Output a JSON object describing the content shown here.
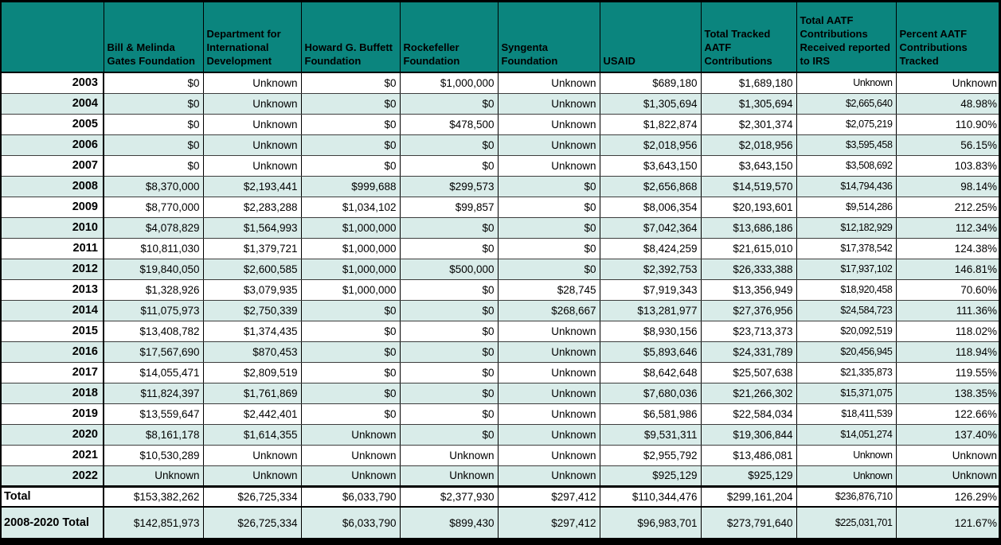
{
  "table": {
    "colors": {
      "header_bg": "#0B857E",
      "row_shaded_bg": "#D9ECE9",
      "grid_line": "#000000",
      "text": "#000000"
    },
    "columns": [
      "",
      "Bill & Melinda Gates Foundation",
      "Department for International Development",
      "Howard G. Buffett Foundation",
      "Rockefeller Foundation",
      "Syngenta Foundation",
      "USAID",
      "Total Tracked AATF Contributions",
      "Total AATF Contributions Received reported to IRS",
      "Percent AATF Contributions Tracked"
    ],
    "column_keys": [
      "year",
      "gates-foundation",
      "dfid",
      "buffett-foundation",
      "rockefeller-foundation",
      "syngenta-foundation",
      "usaid",
      "total-tracked-aatf",
      "irs-reported",
      "percent-tracked"
    ],
    "rows": [
      {
        "key": "2003",
        "label": "2003",
        "type": "year",
        "shaded": false,
        "cells": [
          "$0",
          "Unknown",
          "$0",
          "$1,000,000",
          "Unknown",
          "$689,180",
          "$1,689,180",
          "Unknown",
          "Unknown"
        ]
      },
      {
        "key": "2004",
        "label": "2004",
        "type": "year",
        "shaded": true,
        "cells": [
          "$0",
          "Unknown",
          "$0",
          "$0",
          "Unknown",
          "$1,305,694",
          "$1,305,694",
          "$2,665,640",
          "48.98%"
        ]
      },
      {
        "key": "2005",
        "label": "2005",
        "type": "year",
        "shaded": false,
        "cells": [
          "$0",
          "Unknown",
          "$0",
          "$478,500",
          "Unknown",
          "$1,822,874",
          "$2,301,374",
          "$2,075,219",
          "110.90%"
        ]
      },
      {
        "key": "2006",
        "label": "2006",
        "type": "year",
        "shaded": true,
        "cells": [
          "$0",
          "Unknown",
          "$0",
          "$0",
          "Unknown",
          "$2,018,956",
          "$2,018,956",
          "$3,595,458",
          "56.15%"
        ]
      },
      {
        "key": "2007",
        "label": "2007",
        "type": "year",
        "shaded": false,
        "cells": [
          "$0",
          "Unknown",
          "$0",
          "$0",
          "Unknown",
          "$3,643,150",
          "$3,643,150",
          "$3,508,692",
          "103.83%"
        ]
      },
      {
        "key": "2008",
        "label": "2008",
        "type": "year",
        "shaded": true,
        "cells": [
          "$8,370,000",
          "$2,193,441",
          "$999,688",
          "$299,573",
          "$0",
          "$2,656,868",
          "$14,519,570",
          "$14,794,436",
          "98.14%"
        ]
      },
      {
        "key": "2009",
        "label": "2009",
        "type": "year",
        "shaded": false,
        "cells": [
          "$8,770,000",
          "$2,283,288",
          "$1,034,102",
          "$99,857",
          "$0",
          "$8,006,354",
          "$20,193,601",
          "$9,514,286",
          "212.25%"
        ]
      },
      {
        "key": "2010",
        "label": "2010",
        "type": "year",
        "shaded": true,
        "cells": [
          "$4,078,829",
          "$1,564,993",
          "$1,000,000",
          "$0",
          "$0",
          "$7,042,364",
          "$13,686,186",
          "$12,182,929",
          "112.34%"
        ]
      },
      {
        "key": "2011",
        "label": "2011",
        "type": "year",
        "shaded": false,
        "cells": [
          "$10,811,030",
          "$1,379,721",
          "$1,000,000",
          "$0",
          "$0",
          "$8,424,259",
          "$21,615,010",
          "$17,378,542",
          "124.38%"
        ]
      },
      {
        "key": "2012",
        "label": "2012",
        "type": "year",
        "shaded": true,
        "cells": [
          "$19,840,050",
          "$2,600,585",
          "$1,000,000",
          "$500,000",
          "$0",
          "$2,392,753",
          "$26,333,388",
          "$17,937,102",
          "146.81%"
        ]
      },
      {
        "key": "2013",
        "label": "2013",
        "type": "year",
        "shaded": false,
        "cells": [
          "$1,328,926",
          "$3,079,935",
          "$1,000,000",
          "$0",
          "$28,745",
          "$7,919,343",
          "$13,356,949",
          "$18,920,458",
          "70.60%"
        ]
      },
      {
        "key": "2014",
        "label": "2014",
        "type": "year",
        "shaded": true,
        "cells": [
          "$11,075,973",
          "$2,750,339",
          "$0",
          "$0",
          "$268,667",
          "$13,281,977",
          "$27,376,956",
          "$24,584,723",
          "111.36%"
        ]
      },
      {
        "key": "2015",
        "label": "2015",
        "type": "year",
        "shaded": false,
        "cells": [
          "$13,408,782",
          "$1,374,435",
          "$0",
          "$0",
          "Unknown",
          "$8,930,156",
          "$23,713,373",
          "$20,092,519",
          "118.02%"
        ]
      },
      {
        "key": "2016",
        "label": "2016",
        "type": "year",
        "shaded": true,
        "cells": [
          "$17,567,690",
          "$870,453",
          "$0",
          "$0",
          "Unknown",
          "$5,893,646",
          "$24,331,789",
          "$20,456,945",
          "118.94%"
        ]
      },
      {
        "key": "2017",
        "label": "2017",
        "type": "year",
        "shaded": false,
        "cells": [
          "$14,055,471",
          "$2,809,519",
          "$0",
          "$0",
          "Unknown",
          "$8,642,648",
          "$25,507,638",
          "$21,335,873",
          "119.55%"
        ]
      },
      {
        "key": "2018",
        "label": "2018",
        "type": "year",
        "shaded": true,
        "cells": [
          "$11,824,397",
          "$1,761,869",
          "$0",
          "$0",
          "Unknown",
          "$7,680,036",
          "$21,266,302",
          "$15,371,075",
          "138.35%"
        ]
      },
      {
        "key": "2019",
        "label": "2019",
        "type": "year",
        "shaded": false,
        "cells": [
          "$13,559,647",
          "$2,442,401",
          "$0",
          "$0",
          "Unknown",
          "$6,581,986",
          "$22,584,034",
          "$18,411,539",
          "122.66%"
        ]
      },
      {
        "key": "2020",
        "label": "2020",
        "type": "year",
        "shaded": true,
        "cells": [
          "$8,161,178",
          "$1,614,355",
          "Unknown",
          "$0",
          "Unknown",
          "$9,531,311",
          "$19,306,844",
          "$14,051,274",
          "137.40%"
        ]
      },
      {
        "key": "2021",
        "label": "2021",
        "type": "year",
        "shaded": false,
        "cells": [
          "$10,530,289",
          "Unknown",
          "Unknown",
          "Unknown",
          "Unknown",
          "$2,955,792",
          "$13,486,081",
          "Unknown",
          "Unknown"
        ]
      },
      {
        "key": "2022",
        "label": "2022",
        "type": "year",
        "shaded": true,
        "cells": [
          "Unknown",
          "Unknown",
          "Unknown",
          "Unknown",
          "Unknown",
          "$925,129",
          "$925,129",
          "Unknown",
          "Unknown"
        ]
      },
      {
        "key": "total",
        "label": "Total",
        "type": "total",
        "shaded": false,
        "cells": [
          "$153,382,262",
          "$26,725,334",
          "$6,033,790",
          "$2,377,930",
          "$297,412",
          "$110,344,476",
          "$299,161,204",
          "$236,876,710",
          "126.29%"
        ]
      },
      {
        "key": "2008-2020-total",
        "label": "2008-2020 Total",
        "type": "grand",
        "shaded": true,
        "cells": [
          "$142,851,973",
          "$26,725,334",
          "$6,033,790",
          "$899,430",
          "$297,412",
          "$96,983,701",
          "$273,791,640",
          "$225,031,701",
          "121.67%"
        ]
      }
    ]
  }
}
